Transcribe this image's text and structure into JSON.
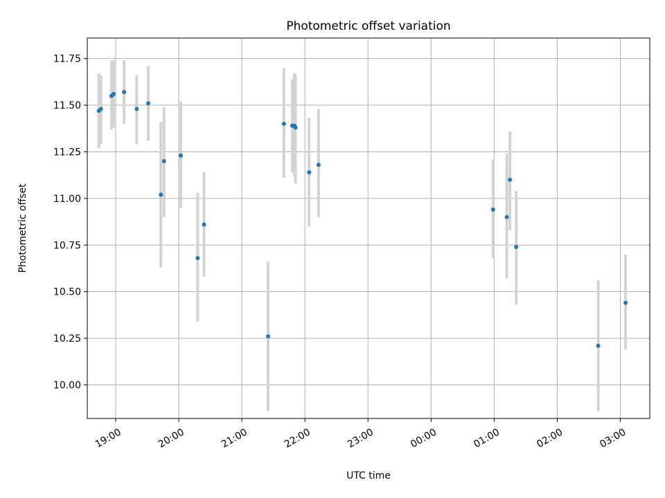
{
  "chart_data": {
    "type": "scatter",
    "title": "Photometric offset variation",
    "xlabel": "UTC time",
    "ylabel": "Photometric offset",
    "x_ticks": [
      "19:00",
      "20:00",
      "21:00",
      "22:00",
      "23:00",
      "00:00",
      "01:00",
      "02:00",
      "03:00"
    ],
    "y_ticks": [
      "10.00",
      "10.25",
      "10.50",
      "10.75",
      "11.00",
      "11.25",
      "11.50",
      "11.75"
    ],
    "xlim": [
      "18:33",
      "03:28"
    ],
    "ylim": [
      9.82,
      11.86
    ],
    "grid": true,
    "series": [
      {
        "points": [
          {
            "x": "18:44",
            "y": 11.47,
            "lo": 11.27,
            "hi": 11.67
          },
          {
            "x": "18:46",
            "y": 11.48,
            "lo": 11.29,
            "hi": 11.66
          },
          {
            "x": "18:56",
            "y": 11.55,
            "lo": 11.37,
            "hi": 11.74
          },
          {
            "x": "18:58",
            "y": 11.56,
            "lo": 11.38,
            "hi": 11.74
          },
          {
            "x": "19:08",
            "y": 11.57,
            "lo": 11.4,
            "hi": 11.74
          },
          {
            "x": "19:20",
            "y": 11.48,
            "lo": 11.29,
            "hi": 11.66
          },
          {
            "x": "19:31",
            "y": 11.51,
            "lo": 11.31,
            "hi": 11.71
          },
          {
            "x": "19:43",
            "y": 11.02,
            "lo": 10.63,
            "hi": 11.41
          },
          {
            "x": "19:46",
            "y": 11.2,
            "lo": 10.9,
            "hi": 11.49
          },
          {
            "x": "20:02",
            "y": 11.23,
            "lo": 10.95,
            "hi": 11.52
          },
          {
            "x": "20:18",
            "y": 10.68,
            "lo": 10.34,
            "hi": 11.03
          },
          {
            "x": "20:24",
            "y": 10.86,
            "lo": 10.58,
            "hi": 11.14
          },
          {
            "x": "21:25",
            "y": 10.26,
            "lo": 9.86,
            "hi": 10.66
          },
          {
            "x": "21:40",
            "y": 11.4,
            "lo": 11.11,
            "hi": 11.7
          },
          {
            "x": "21:48",
            "y": 11.39,
            "lo": 11.14,
            "hi": 11.64
          },
          {
            "x": "21:50",
            "y": 11.39,
            "lo": 11.12,
            "hi": 11.67
          },
          {
            "x": "21:51",
            "y": 11.38,
            "lo": 11.08,
            "hi": 11.67
          },
          {
            "x": "22:04",
            "y": 11.14,
            "lo": 10.85,
            "hi": 11.43
          },
          {
            "x": "22:13",
            "y": 11.18,
            "lo": 10.9,
            "hi": 11.48
          },
          {
            "x": "00:59",
            "y": 10.94,
            "lo": 10.68,
            "hi": 11.21
          },
          {
            "x": "01:12",
            "y": 10.9,
            "lo": 10.57,
            "hi": 11.24
          },
          {
            "x": "01:15",
            "y": 11.1,
            "lo": 10.83,
            "hi": 11.36
          },
          {
            "x": "01:21",
            "y": 10.74,
            "lo": 10.43,
            "hi": 11.04
          },
          {
            "x": "02:39",
            "y": 10.21,
            "lo": 9.86,
            "hi": 10.56
          },
          {
            "x": "03:05",
            "y": 10.44,
            "lo": 10.19,
            "hi": 10.7
          }
        ]
      }
    ],
    "colors": {
      "point": "#1f77b4",
      "errorbar": "#d3d3d3",
      "grid": "#b0b0b0",
      "axes": "#000000"
    }
  }
}
